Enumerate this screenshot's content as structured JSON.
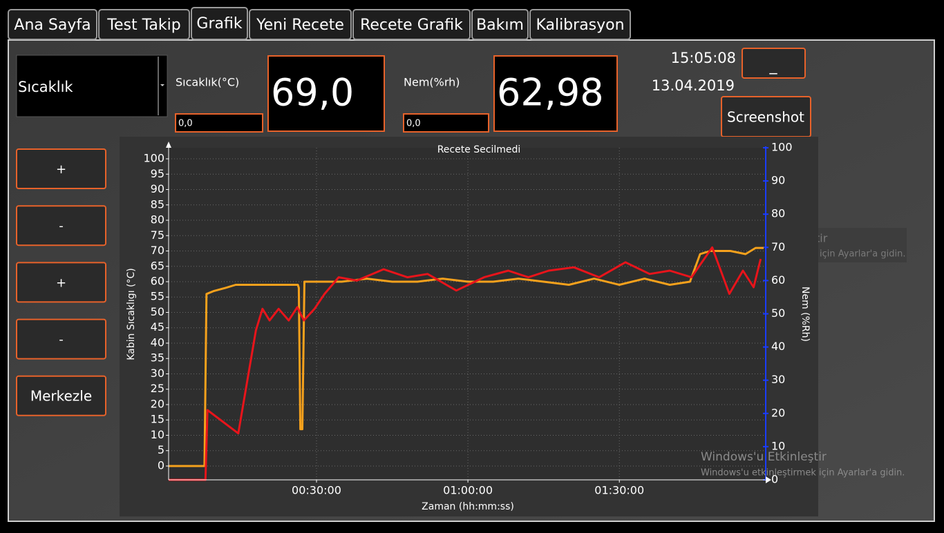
{
  "tabs": [
    "Ana Sayfa",
    "Test Takip",
    "Grafik",
    "Yeni Recete",
    "Recete Grafik",
    "Bakım",
    "Kalibrasyon"
  ],
  "sensor_select": "Sıcaklık",
  "temperature": {
    "label": "Sıcaklık(°C)",
    "setpoint": "0,0",
    "reading": "69,0"
  },
  "humidity": {
    "label": "Nem(%rh)",
    "setpoint": "0,0",
    "reading": "62,98"
  },
  "clock": {
    "time": "15:05:08",
    "date": "13.04.2019"
  },
  "buttons": {
    "minimize": "_",
    "screenshot": "Screenshot",
    "side": [
      "+",
      "-",
      "+",
      "-",
      "Merkezle"
    ]
  },
  "activation_notice": {
    "title": "Windows'u Etkinleştir",
    "text": "Windows'u etkinleştirmek için Ayarlar'a gidin.",
    "partial_title": "tir",
    "partial_text": "için Ayarlar'a gidin."
  },
  "chart_data": {
    "type": "line",
    "title": "Recete Secilmedi",
    "x_label": "Zaman (hh:mm:ss)",
    "y_label": "Kabin Sıcaklıgı (°C)",
    "y2_label": "Nem (%Rh)",
    "xlim": [
      0.7,
      119
    ],
    "xticks": [
      {
        "value": 30,
        "label": "00:30:00"
      },
      {
        "value": 60,
        "label": "01:00:00"
      },
      {
        "value": 90,
        "label": "01:30:00"
      }
    ],
    "ylim": [
      -4.5,
      103.6
    ],
    "yticks": [
      0,
      5,
      10,
      15,
      20,
      25,
      30,
      35,
      40,
      45,
      50,
      55,
      60,
      65,
      70,
      75,
      80,
      85,
      90,
      95,
      100
    ],
    "y2lim": [
      0,
      100
    ],
    "y2ticks": [
      0,
      10,
      20,
      30,
      40,
      50,
      60,
      70,
      80,
      90,
      100
    ],
    "grid": true,
    "series": [
      {
        "color": "#f5a11c",
        "axis": "y",
        "x": [
          0.7,
          7.8,
          8.2,
          9.7,
          12,
          14,
          20,
          26.3,
          26.5,
          26.8,
          27.2,
          27.6,
          30,
          35,
          40,
          45,
          50,
          55,
          60,
          65,
          70,
          75,
          80,
          85,
          90,
          95,
          100,
          104,
          106,
          108,
          110,
          112,
          115,
          117,
          118.6
        ],
        "values": [
          0,
          0,
          56,
          57,
          58,
          59,
          59,
          59,
          58,
          12,
          12,
          60,
          60,
          60,
          61,
          60,
          60,
          61,
          60,
          60,
          61,
          60,
          59,
          61,
          59,
          61,
          59,
          60,
          69,
          70,
          70,
          70,
          69,
          71,
          71
        ]
      },
      {
        "color": "#e8141b",
        "axis": "y2",
        "x": [
          0.7,
          8,
          8.4,
          14.5,
          18,
          19.3,
          20.7,
          22.5,
          24.5,
          26.2,
          27.5,
          29.6,
          31.6,
          34.4,
          38,
          43.3,
          48,
          52,
          57.7,
          63.2,
          68,
          72,
          76,
          81,
          86,
          91.2,
          96,
          100,
          104.3,
          108.4,
          111.8,
          114.5,
          116.6,
          118
        ],
        "values": [
          0,
          0,
          21,
          14,
          45,
          51.5,
          48,
          51.5,
          48,
          52,
          48,
          51.5,
          56,
          61,
          60,
          63.4,
          61,
          62,
          57,
          61,
          63,
          61,
          63,
          64,
          61,
          65.5,
          62,
          63,
          61,
          70,
          56,
          63,
          58,
          66.5
        ]
      }
    ]
  }
}
